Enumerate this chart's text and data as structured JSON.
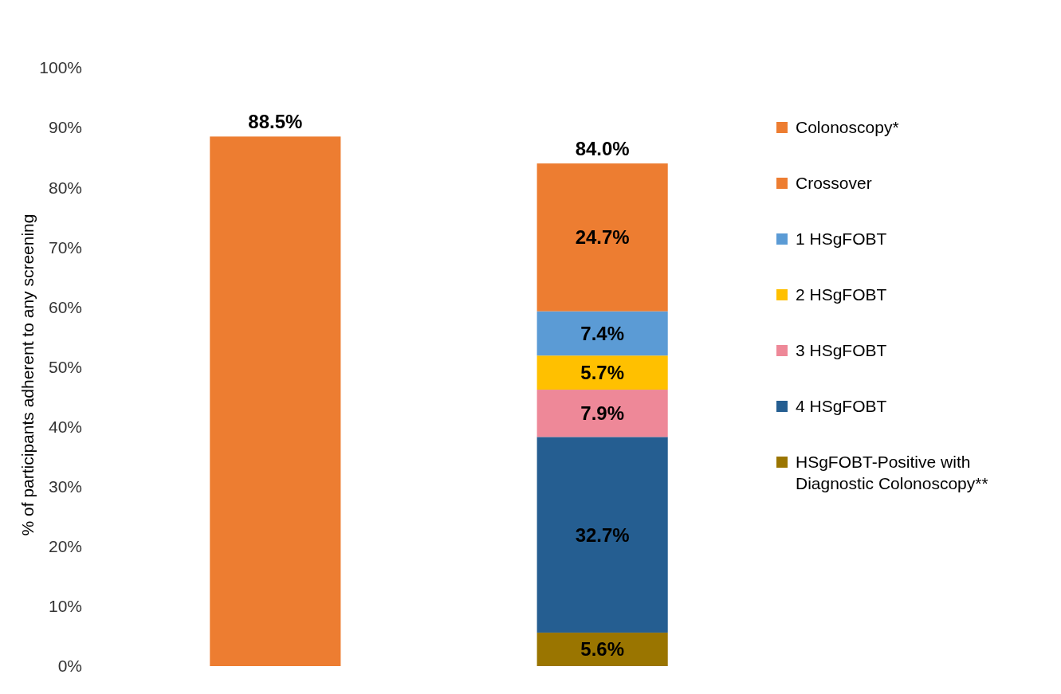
{
  "chart_data": {
    "type": "bar",
    "stacked": true,
    "ylabel": "% of participants adherent to any screening",
    "categories": [
      null,
      null
    ],
    "ylim": [
      0,
      100
    ],
    "yticks": [
      {
        "value": 0,
        "label": "0%"
      },
      {
        "value": 10,
        "label": "10%"
      },
      {
        "value": 20,
        "label": "20%"
      },
      {
        "value": 30,
        "label": "30%"
      },
      {
        "value": 40,
        "label": "40%"
      },
      {
        "value": 50,
        "label": "50%"
      },
      {
        "value": 60,
        "label": "60%"
      },
      {
        "value": 70,
        "label": "70%"
      },
      {
        "value": 80,
        "label": "80%"
      },
      {
        "value": 90,
        "label": "90%"
      },
      {
        "value": 100,
        "label": "100%"
      }
    ],
    "grid": false,
    "legend": "right",
    "totals": [
      "88.5%",
      "84.0%"
    ],
    "series": [
      {
        "name": "HSgFOBT-Positive with Diagnostic Colonoscopy**",
        "color": "#9a7500",
        "values": [
          null,
          5.6
        ],
        "value_labels": [
          null,
          "5.6%"
        ]
      },
      {
        "name": "4 HSgFOBT",
        "color": "#255e91",
        "values": [
          null,
          32.7
        ],
        "value_labels": [
          null,
          "32.7%"
        ]
      },
      {
        "name": "3 HSgFOBT",
        "color": "#ee8898",
        "values": [
          null,
          7.9
        ],
        "value_labels": [
          null,
          "7.9%"
        ]
      },
      {
        "name": "2 HSgFOBT",
        "color": "#ffc000",
        "values": [
          null,
          5.7
        ],
        "value_labels": [
          null,
          "5.7%"
        ]
      },
      {
        "name": "1 HSgFOBT",
        "color": "#5b9bd5",
        "values": [
          null,
          7.4
        ],
        "value_labels": [
          null,
          "7.4%"
        ]
      },
      {
        "name": "Crossover",
        "color": "#ed7d31",
        "values": [
          null,
          24.7
        ],
        "value_labels": [
          null,
          "24.7%"
        ]
      },
      {
        "name": "Colonoscopy*",
        "color": "#ed7d31",
        "values": [
          88.5,
          null
        ],
        "value_labels": [
          null,
          null
        ]
      }
    ]
  }
}
